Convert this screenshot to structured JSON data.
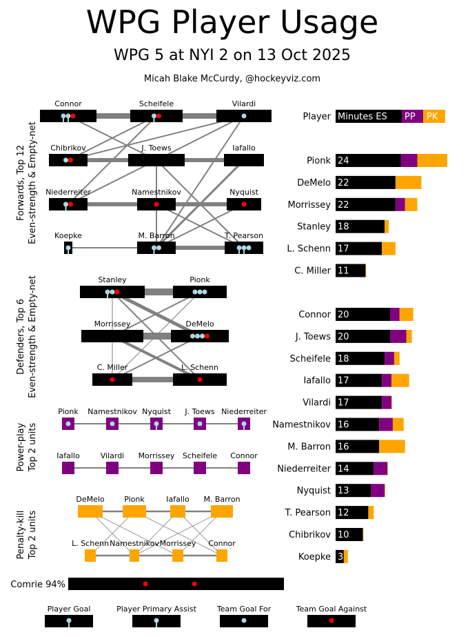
{
  "header": {
    "title": "WPG Player Usage",
    "subtitle": "WPG 5 at NYI 2 on 13 Oct 2025",
    "credit": "Micah Blake McCurdy, @hockeyviz.com"
  },
  "colors": {
    "es": "#000000",
    "pp": "#800080",
    "pk": "#ffa500",
    "link": "#808080",
    "goal": "#add8e6",
    "opp_goal": "#ff0000"
  },
  "sections": {
    "forwards": "Forwards, Top 12\nEven-strength & Empty-net",
    "defenders": "Defenders, Top 6\nEven-strength & Empty-net",
    "powerplay": "Power-play\nTop 2 units",
    "penaltykill": "Penalty-kill\nTop 2 units"
  },
  "legend": {
    "player_goal": "Player Goal",
    "primary_assist": "Player Primary Assist",
    "team_goal_for": "Team Goal For",
    "team_goal_against": "Team Goal Against"
  },
  "forwards_graph": {
    "nodes": [
      {
        "name": "Connor",
        "width": "wide",
        "markers": [
          "assist",
          "assist",
          "against"
        ]
      },
      {
        "name": "Scheifele",
        "width": "wide",
        "markers": [
          "goal",
          "against"
        ]
      },
      {
        "name": "Vilardi",
        "width": "wide",
        "markers": [
          "for"
        ]
      },
      {
        "name": "Chibrikov",
        "width": "narrow",
        "markers": [
          "for",
          "against"
        ]
      },
      {
        "name": "J. Toews",
        "width": "wide",
        "markers": []
      },
      {
        "name": "Iafallo",
        "width": "narrow",
        "markers": []
      },
      {
        "name": "Niederreiter",
        "width": "narrow",
        "markers": [
          "goal",
          "against"
        ]
      },
      {
        "name": "Namestnikov",
        "width": "narrow",
        "markers": [
          "against"
        ]
      },
      {
        "name": "Nyquist",
        "width": "narrow",
        "markers": [
          "against"
        ]
      },
      {
        "name": "Koepke",
        "width": "tiny",
        "markers": [
          "goal"
        ]
      },
      {
        "name": "M. Barron",
        "width": "narrow",
        "markers": [
          "assist",
          "for"
        ]
      },
      {
        "name": "T. Pearson",
        "width": "narrow",
        "markers": [
          "assist",
          "assist",
          "for"
        ]
      }
    ]
  },
  "defenders_graph": {
    "nodes": [
      {
        "name": "Stanley",
        "markers": [
          "assist",
          "for",
          "against"
        ]
      },
      {
        "name": "Pionk",
        "markers": [
          "for",
          "for",
          "for"
        ]
      },
      {
        "name": "Morrissey",
        "markers": []
      },
      {
        "name": "DeMelo",
        "markers": [
          "for",
          "for",
          "for",
          "against"
        ]
      },
      {
        "name": "C. Miller",
        "markers": [
          "against"
        ]
      },
      {
        "name": "L. Schenn",
        "markers": [
          "against"
        ]
      }
    ]
  },
  "pp_units": [
    [
      "Pionk",
      "Namestnikov",
      "Nyquist",
      "J. Toews",
      "Niederreiter"
    ],
    [
      "Iafallo",
      "Vilardi",
      "Morrissey",
      "Scheifele",
      "Connor"
    ]
  ],
  "pk_units": [
    [
      "DeMelo",
      "Pionk",
      "Iafallo",
      "M. Barron"
    ],
    [
      "L. Schenn",
      "Namestnikov",
      "Morrissey",
      "Connor"
    ]
  ],
  "goalie": {
    "label": "Comrie 94%",
    "markers": [
      "against",
      "against"
    ]
  },
  "chart_data": {
    "type": "bar",
    "stacked": true,
    "orientation": "horizontal",
    "header": {
      "label": "Player",
      "es": "Minutes ES",
      "pp": "PP",
      "pk": "PK"
    },
    "series_names": [
      "ES",
      "PP",
      "PK"
    ],
    "defense": [
      {
        "player": "Pionk",
        "es": 24,
        "pp": 6.0,
        "pk": 11.0
      },
      {
        "player": "DeMelo",
        "es": 22,
        "pp": 0,
        "pk": 9.5
      },
      {
        "player": "Morrissey",
        "es": 22,
        "pp": 3.5,
        "pk": 4.5
      },
      {
        "player": "Stanley",
        "es": 18,
        "pp": 0,
        "pk": 1.5
      },
      {
        "player": "L. Schenn",
        "es": 17,
        "pp": 0,
        "pk": 5.0
      },
      {
        "player": "C. Miller",
        "es": 11,
        "pp": 0,
        "pk": 0.2
      }
    ],
    "forwards": [
      {
        "player": "Connor",
        "es": 20,
        "pp": 3.5,
        "pk": 5.0
      },
      {
        "player": "J. Toews",
        "es": 20,
        "pp": 6.0,
        "pk": 2.0
      },
      {
        "player": "Scheifele",
        "es": 18,
        "pp": 3.5,
        "pk": 2.0
      },
      {
        "player": "Iafallo",
        "es": 17,
        "pp": 3.5,
        "pk": 6.5
      },
      {
        "player": "Vilardi",
        "es": 17,
        "pp": 3.5,
        "pk": 0.2
      },
      {
        "player": "Namestnikov",
        "es": 16,
        "pp": 5.0,
        "pk": 4.0
      },
      {
        "player": "M. Barron",
        "es": 16,
        "pp": 0,
        "pk": 9.5
      },
      {
        "player": "Niederreiter",
        "es": 14,
        "pp": 5.0,
        "pk": 0.2
      },
      {
        "player": "Nyquist",
        "es": 13,
        "pp": 5.0,
        "pk": 0.2
      },
      {
        "player": "T. Pearson",
        "es": 12,
        "pp": 0,
        "pk": 2.0
      },
      {
        "player": "Chibrikov",
        "es": 10,
        "pp": 0,
        "pk": 0.2
      },
      {
        "player": "Koepke",
        "es": 3,
        "pp": 0,
        "pk": 1.5
      }
    ]
  }
}
